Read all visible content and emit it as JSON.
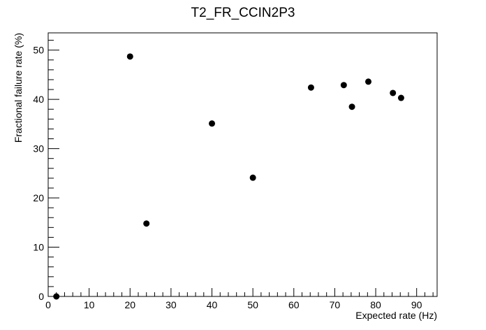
{
  "chart_data": {
    "type": "scatter",
    "title": "T2_FR_CCIN2P3",
    "xlabel": "Expected rate (Hz)",
    "ylabel": "Fractional failure rate (%)",
    "xlim": [
      0,
      95
    ],
    "ylim": [
      0,
      53.5
    ],
    "x_ticks": [
      0,
      10,
      20,
      30,
      40,
      50,
      60,
      70,
      80,
      90
    ],
    "y_ticks": [
      0,
      10,
      20,
      30,
      40,
      50
    ],
    "x_tick_labels": [
      "0",
      "10",
      "20",
      "30",
      "40",
      "50",
      "60",
      "70",
      "80",
      "90"
    ],
    "y_tick_labels": [
      "0",
      "10",
      "20",
      "30",
      "40",
      "50"
    ],
    "grid": false,
    "marker_color": "#000000",
    "points": [
      {
        "x": 2,
        "y": 0
      },
      {
        "x": 20,
        "y": 48.7
      },
      {
        "x": 24,
        "y": 14.8
      },
      {
        "x": 40,
        "y": 35.1
      },
      {
        "x": 50,
        "y": 24.1
      },
      {
        "x": 64.2,
        "y": 42.4
      },
      {
        "x": 72.2,
        "y": 42.9
      },
      {
        "x": 74.2,
        "y": 38.5
      },
      {
        "x": 78.2,
        "y": 43.6
      },
      {
        "x": 84.2,
        "y": 41.3
      },
      {
        "x": 86.2,
        "y": 40.3
      }
    ]
  }
}
